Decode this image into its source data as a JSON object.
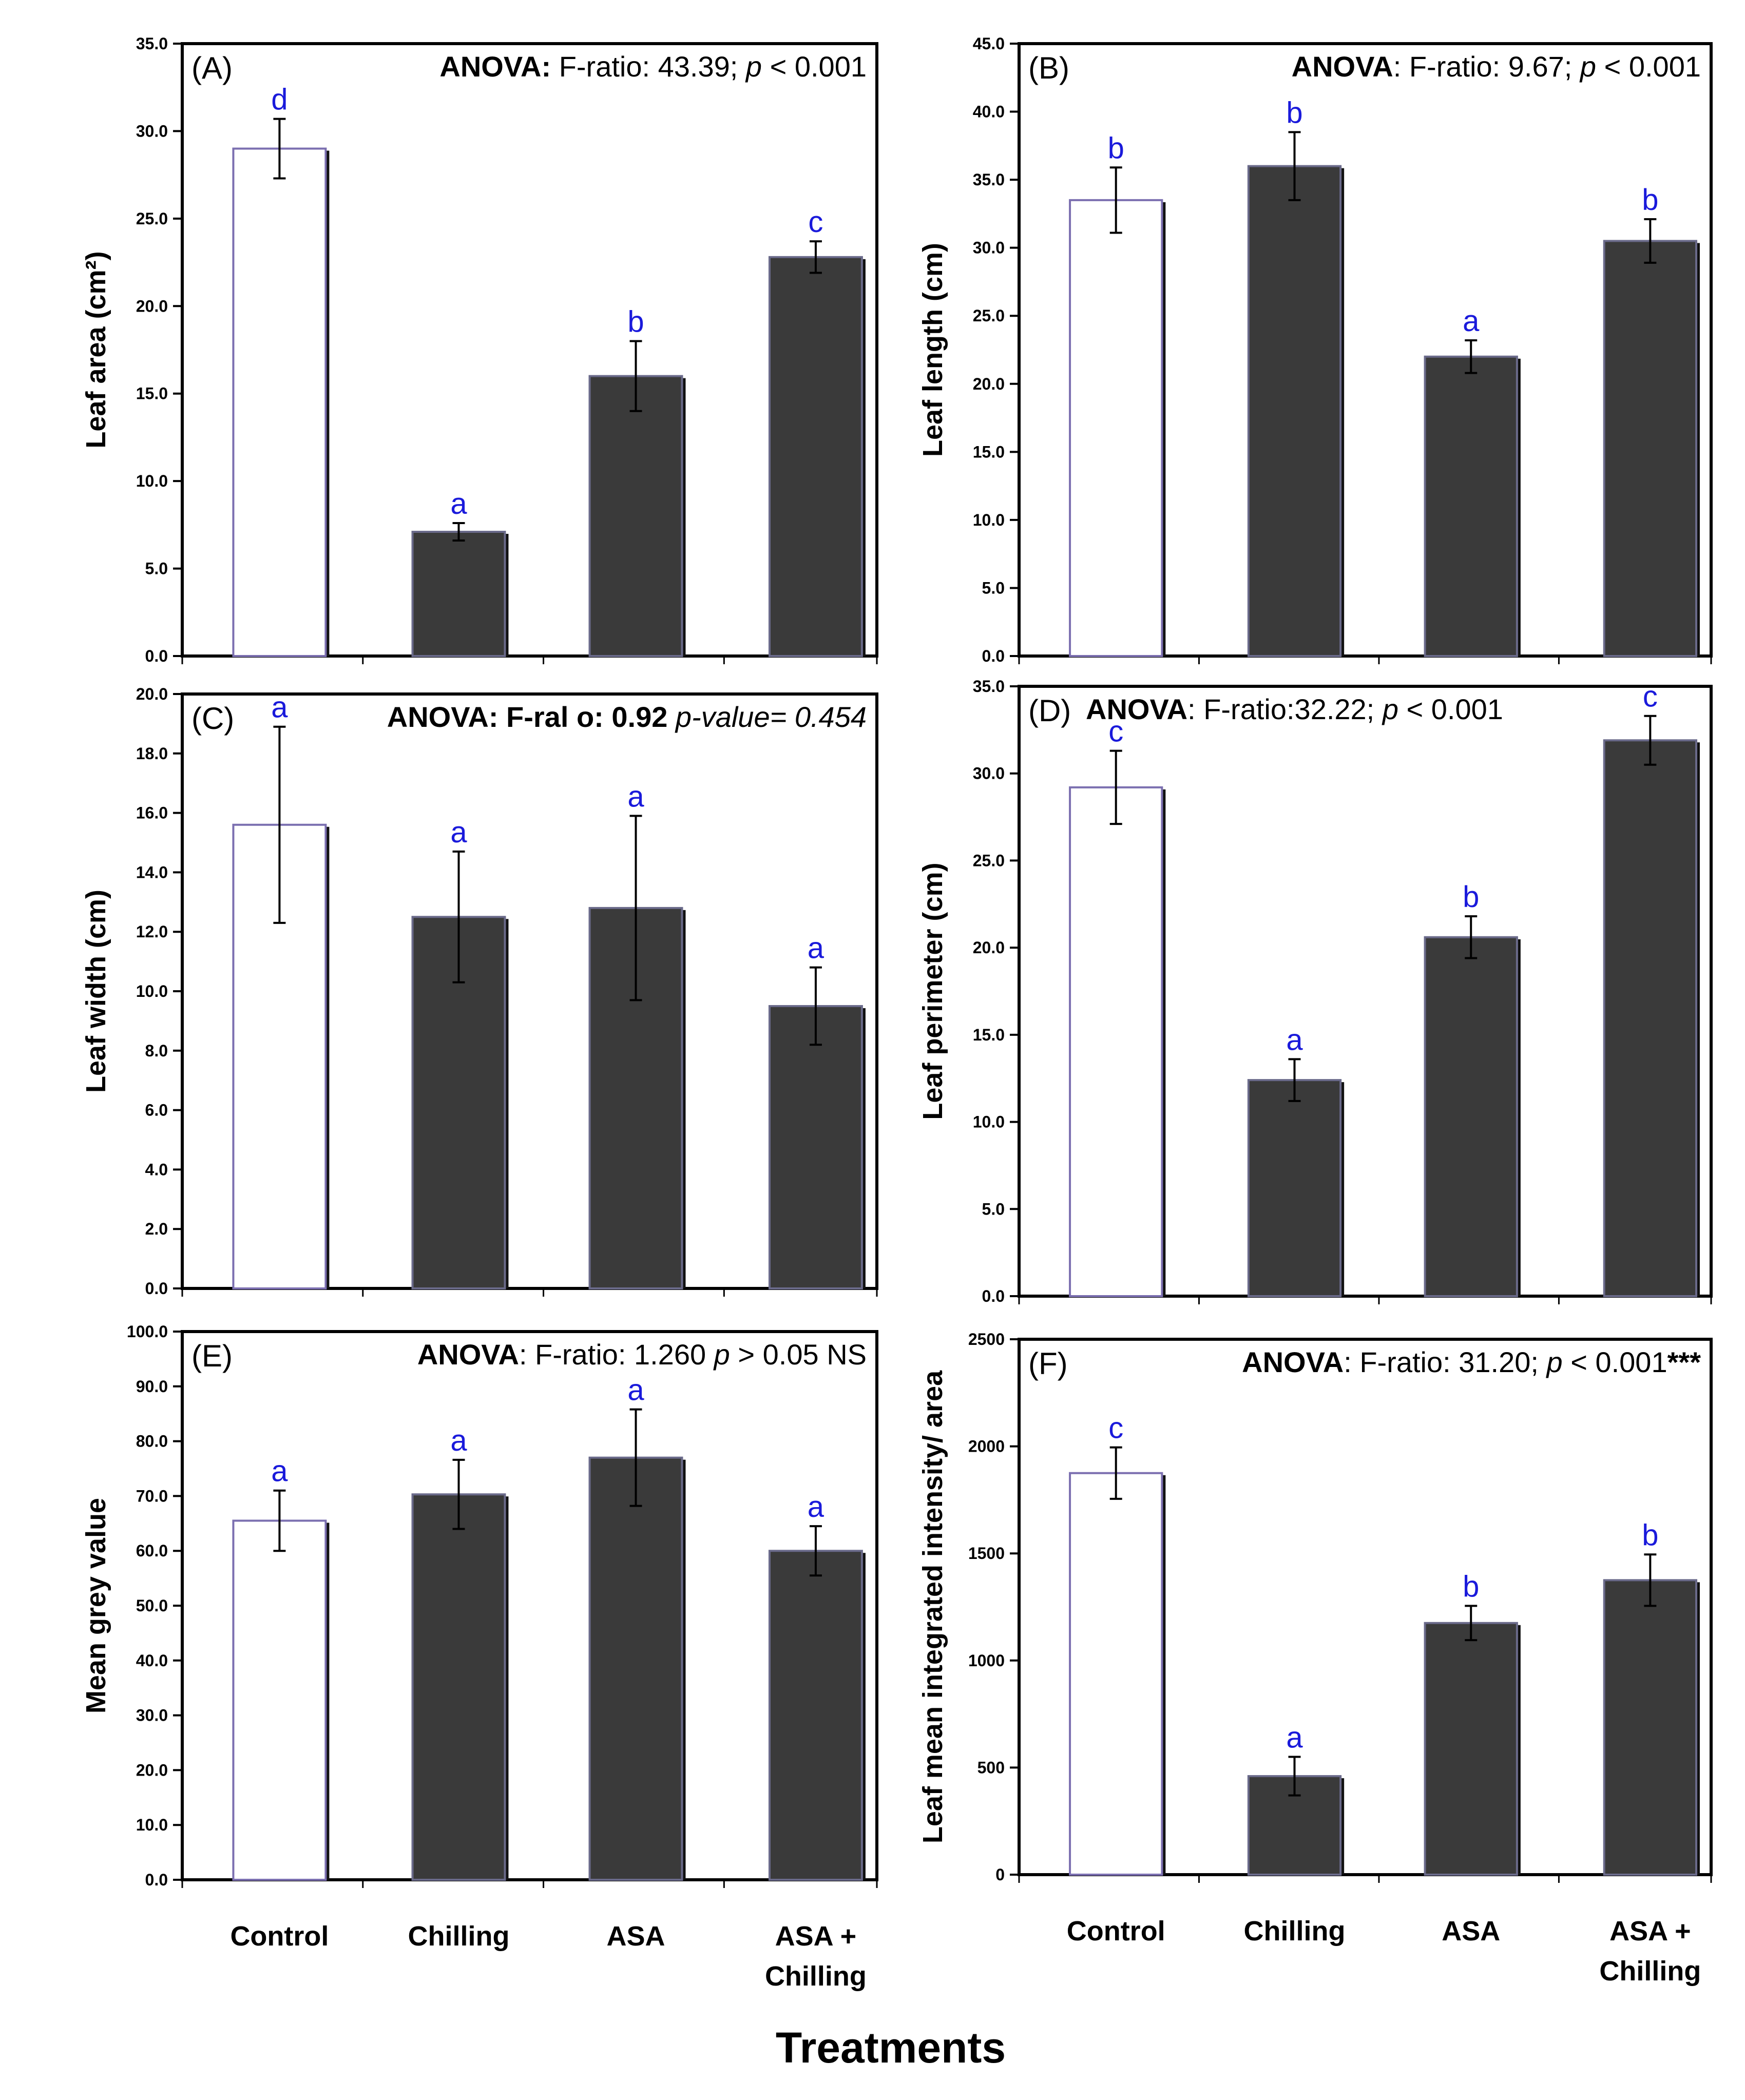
{
  "colors": {
    "bar_dark": "#3a3a3a",
    "bar_control": "#ffffff",
    "control_outline": "#7b6fb0",
    "sig_letter": "#1a1adb",
    "axis": "#000000"
  },
  "categories_display": [
    {
      "line1": "Control",
      "line2": ""
    },
    {
      "line1": "Chilling",
      "line2": ""
    },
    {
      "line1": "ASA",
      "line2": ""
    },
    {
      "line1": "ASA +",
      "line2": "Chilling"
    }
  ],
  "x_title": "Treatments",
  "chart_data": [
    {
      "id": "A",
      "type": "bar",
      "panel_label": "(A)",
      "categories": [
        "Control",
        "Chilling",
        "ASA",
        "ASA + Chilling"
      ],
      "values": [
        29.0,
        7.1,
        16.0,
        22.8
      ],
      "errors": [
        1.7,
        0.5,
        2.0,
        0.9
      ],
      "letters": [
        "d",
        "a",
        "b",
        "c"
      ],
      "ylabel": "Leaf area (cm²)",
      "ylim": [
        0,
        35
      ],
      "tick_step": 5,
      "decimals": 1,
      "ticks": [
        "0.0",
        "5.0",
        "10.0",
        "15.0",
        "20.0",
        "25.0",
        "30.0",
        "35.0"
      ],
      "anova": [
        {
          "text": "ANOVA:",
          "style": "b"
        },
        {
          "text": " F-ratio: 43.39; ",
          "style": ""
        },
        {
          "text": "p",
          "style": "i"
        },
        {
          "text": " < 0.001",
          "style": ""
        }
      ]
    },
    {
      "id": "B",
      "type": "bar",
      "panel_label": "(B)",
      "categories": [
        "Control",
        "Chilling",
        "ASA",
        "ASA + Chilling"
      ],
      "values": [
        33.5,
        36.0,
        22.0,
        30.5
      ],
      "errors": [
        2.4,
        2.5,
        1.2,
        1.6
      ],
      "letters": [
        "b",
        "b",
        "a",
        "b"
      ],
      "ylabel": "Leaf  length (cm)",
      "ylim": [
        0,
        45
      ],
      "tick_step": 5,
      "decimals": 1,
      "ticks": [
        "0.0",
        "5.0",
        "10.0",
        "15.0",
        "20.0",
        "25.0",
        "30.0",
        "35.0",
        "40.0",
        "45.0"
      ],
      "anova": [
        {
          "text": "ANOVA",
          "style": "b"
        },
        {
          "text": ": F-ratio: 9.67; ",
          "style": ""
        },
        {
          "text": "p",
          "style": "i"
        },
        {
          "text": " < 0.001",
          "style": ""
        }
      ]
    },
    {
      "id": "C",
      "type": "bar",
      "panel_label": "(C)",
      "categories": [
        "Control",
        "Chilling",
        "ASA",
        "ASA + Chilling"
      ],
      "values": [
        15.6,
        12.5,
        12.8,
        9.5
      ],
      "errors": [
        3.3,
        2.2,
        3.1,
        1.3
      ],
      "letters": [
        "a",
        "a",
        "a",
        "a"
      ],
      "ylabel": "Leaf  width (cm)",
      "ylim": [
        0,
        20
      ],
      "tick_step": 2,
      "decimals": 1,
      "ticks": [
        "0.0",
        "2.0",
        "4.0",
        "6.0",
        "8.0",
        "10.0",
        "12.0",
        "14.0",
        "16.0",
        "18.0",
        "20.0"
      ],
      "anova": [
        {
          "text": "ANOVA: F-ral o: 0.92",
          "style": "b"
        },
        {
          "text": " ",
          "style": ""
        },
        {
          "text": "p-value= 0.454",
          "style": "i"
        }
      ]
    },
    {
      "id": "D",
      "type": "bar",
      "panel_label": "(D)",
      "categories": [
        "Control",
        "Chilling",
        "ASA",
        "ASA + Chilling"
      ],
      "values": [
        29.2,
        12.4,
        20.6,
        31.9
      ],
      "errors": [
        2.1,
        1.2,
        1.2,
        1.4
      ],
      "letters": [
        "c",
        "a",
        "b",
        "c"
      ],
      "ylabel": "Leaf perimeter (cm)",
      "ylim": [
        0,
        35
      ],
      "tick_step": 5,
      "decimals": 1,
      "ticks": [
        "0.0",
        "5.0",
        "10.0",
        "15.0",
        "20.0",
        "25.0",
        "30.0",
        "35.0"
      ],
      "anova": [
        {
          "text": "ANOVA",
          "style": "b"
        },
        {
          "text": ": F-ratio:32.22; ",
          "style": ""
        },
        {
          "text": "p",
          "style": "i"
        },
        {
          "text": " < 0.001",
          "style": ""
        }
      ]
    },
    {
      "id": "E",
      "type": "bar",
      "panel_label": "(E)",
      "categories": [
        "Control",
        "Chilling",
        "ASA",
        "ASA + Chilling"
      ],
      "values": [
        65.5,
        70.3,
        77.0,
        60.0
      ],
      "errors": [
        5.5,
        6.3,
        8.8,
        4.5
      ],
      "letters": [
        "a",
        "a",
        "a",
        "a"
      ],
      "ylabel": "Mean grey value",
      "ylim": [
        0,
        100
      ],
      "tick_step": 10,
      "decimals": 1,
      "ticks": [
        "0.0",
        "10.0",
        "20.0",
        "30.0",
        "40.0",
        "50.0",
        "60.0",
        "70.0",
        "80.0",
        "90.0",
        "100.0"
      ],
      "anova": [
        {
          "text": "ANOVA",
          "style": "b"
        },
        {
          "text": ": F-ratio: 1.260 ",
          "style": ""
        },
        {
          "text": "p",
          "style": "i"
        },
        {
          "text": " > 0.05 NS",
          "style": ""
        }
      ]
    },
    {
      "id": "F",
      "type": "bar",
      "panel_label": "(F)",
      "categories": [
        "Control",
        "Chilling",
        "ASA",
        "ASA + Chilling"
      ],
      "values": [
        1875,
        460,
        1175,
        1375
      ],
      "errors": [
        120,
        90,
        80,
        120
      ],
      "letters": [
        "c",
        "a",
        "b",
        "b"
      ],
      "ylabel": "Leaf mean integrated intensity/ area",
      "ylim": [
        0,
        2500
      ],
      "tick_step": 500,
      "decimals": 0,
      "ticks": [
        "0",
        "500",
        "1000",
        "1500",
        "2000",
        "2500"
      ],
      "anova": [
        {
          "text": "ANOVA",
          "style": "b"
        },
        {
          "text": ": F-ratio: 31.20; ",
          "style": ""
        },
        {
          "text": "p",
          "style": "i"
        },
        {
          "text": " < 0.001",
          "style": ""
        },
        {
          "text": "***",
          "style": "b"
        }
      ]
    }
  ]
}
